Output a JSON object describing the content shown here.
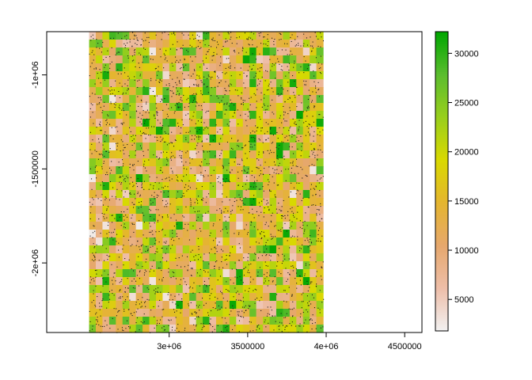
{
  "chart_data": {
    "type": "heatmap",
    "title": "",
    "xlabel": "",
    "ylabel": "",
    "xlim": [
      2220000,
      4610000
    ],
    "ylim": [
      -2370000,
      -770000
    ],
    "raster_extent": {
      "xmin": 2490000,
      "xmax": 3980000,
      "ymin": -2370000,
      "ymax": -770000
    },
    "grid": {
      "ncols": 35,
      "nrows": 38
    },
    "grid_lines": false,
    "point_overlay": true,
    "x_ticks": [
      {
        "value": 3000000,
        "label": "3e+06"
      },
      {
        "value": 3500000,
        "label": "3500000"
      },
      {
        "value": 4000000,
        "label": "4e+06"
      },
      {
        "value": 4500000,
        "label": "4500000"
      }
    ],
    "y_ticks": [
      {
        "value": -1000000,
        "label": "-1e+06"
      },
      {
        "value": -1500000,
        "label": "-1500000"
      },
      {
        "value": -2000000,
        "label": "-2e+06"
      }
    ],
    "legend": {
      "position": "right",
      "min": 1800,
      "max": 32200,
      "ticks": [
        {
          "value": 5000,
          "label": "5000"
        },
        {
          "value": 10000,
          "label": "10000"
        },
        {
          "value": 15000,
          "label": "15000"
        },
        {
          "value": 20000,
          "label": "20000"
        },
        {
          "value": 25000,
          "label": "25000"
        },
        {
          "value": 30000,
          "label": "30000"
        }
      ],
      "colors": [
        "#f2f2f2",
        "#eebea9",
        "#e6a86d",
        "#e5b52f",
        "#d9d900",
        "#99cf1c",
        "#5bbd2e",
        "#00a600"
      ]
    }
  }
}
